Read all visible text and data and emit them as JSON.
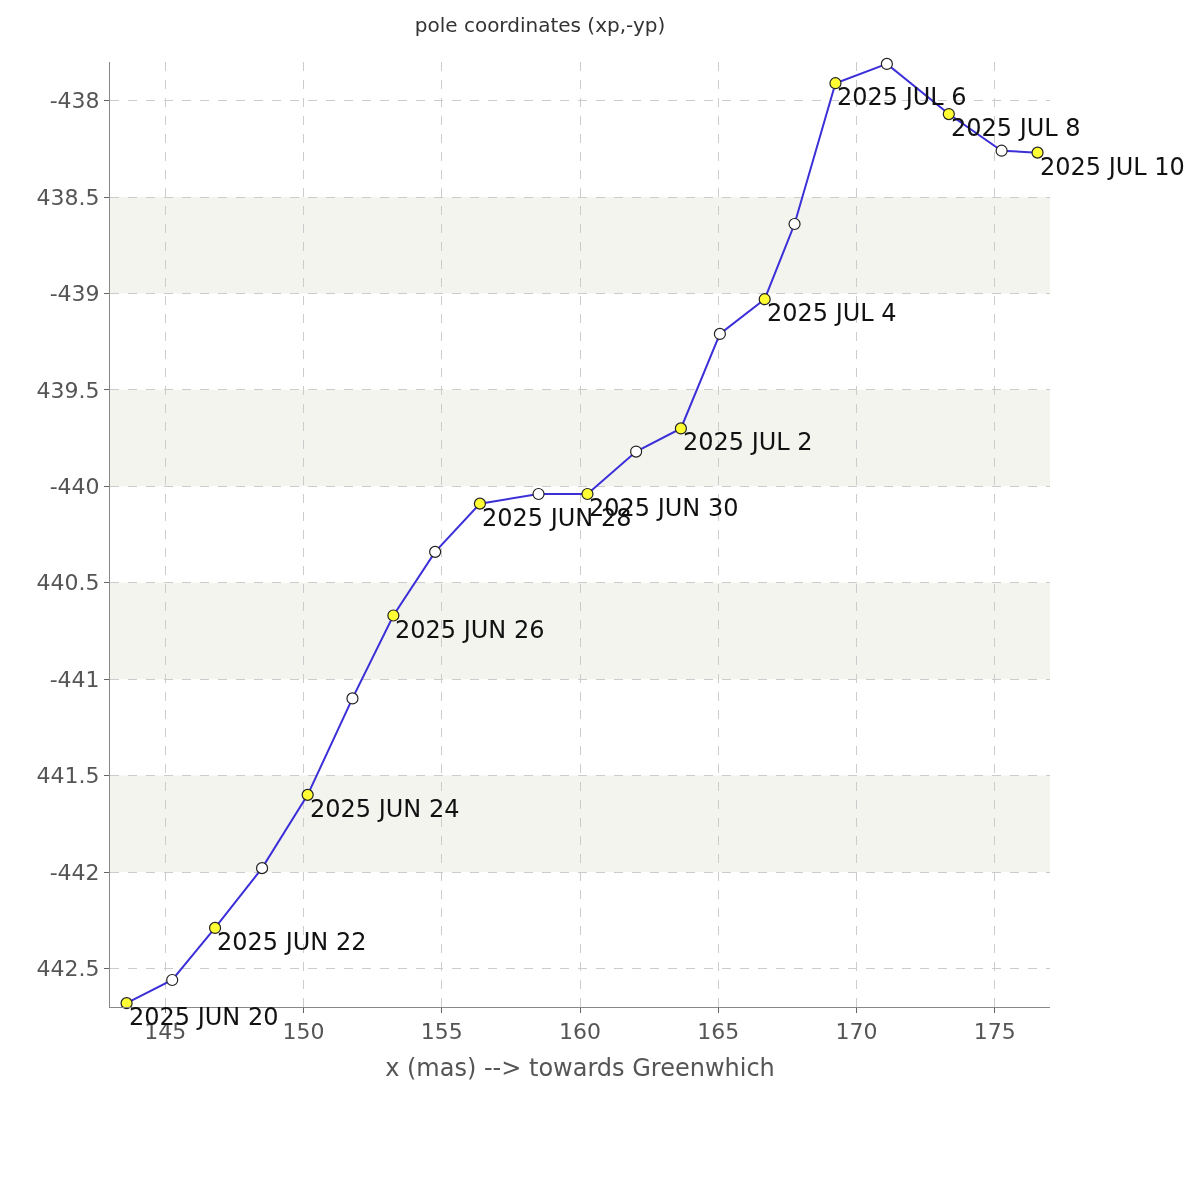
{
  "chart_data": {
    "type": "line",
    "title": "pole coordinates (xp,-yp)",
    "xlabel": "x (mas) --> towards Greenwhich",
    "x": [
      143.6,
      145.25,
      146.8,
      148.5,
      150.15,
      151.77,
      153.25,
      154.76,
      156.38,
      158.5,
      160.27,
      162.03,
      163.65,
      165.06,
      166.68,
      167.76,
      169.24,
      171.1,
      173.34,
      175.25,
      176.55
    ],
    "series": [
      {
        "color": "#3b2fd8",
        "values": [
          -442.68,
          -442.56,
          -442.29,
          -441.98,
          -441.6,
          -441.1,
          -440.67,
          -440.34,
          -440.09,
          -440.04,
          -440.04,
          -439.82,
          -439.7,
          -439.21,
          -439.03,
          -438.64,
          -437.91,
          -437.81,
          -438.07,
          -438.26,
          -438.27
        ],
        "colors": [
          "#ffff33",
          "#ffffff",
          "#ffff33",
          "#ffffff",
          "#ffff33",
          "#ffffff",
          "#ffff33",
          "#ffffff",
          "#ffff33",
          "#ffffff",
          "#ffff33",
          "#ffffff",
          "#ffff33",
          "#ffffff",
          "#ffff33",
          "#ffffff",
          "#ffff33",
          "#ffffff",
          "#ffff33",
          "#ffffff",
          "#ffff33"
        ]
      }
    ],
    "annotations": [
      {
        "text": "2025 JUN 20",
        "x": 143.6,
        "y": -442.68
      },
      {
        "text": "2025 JUN 22",
        "x": 146.8,
        "y": -442.29
      },
      {
        "text": "2025 JUN 24",
        "x": 150.15,
        "y": -441.6
      },
      {
        "text": "2025 JUN 26",
        "x": 153.25,
        "y": -440.67
      },
      {
        "text": "2025 JUN 28",
        "x": 156.38,
        "y": -440.09
      },
      {
        "text": "2025 JUN 30",
        "x": 160.27,
        "y": -440.04
      },
      {
        "text": "2025 JUL 2",
        "x": 163.65,
        "y": -439.7
      },
      {
        "text": "2025 JUL 4",
        "x": 166.68,
        "y": -439.03
      },
      {
        "text": "2025 JUL 6",
        "x": 169.24,
        "y": -437.91
      },
      {
        "text": "2025 JUL 8",
        "x": 173.34,
        "y": -438.07
      },
      {
        "text": "2025 JUL 10",
        "x": 176.55,
        "y": -438.27
      }
    ],
    "bands": [
      {
        "axis": "y",
        "from": -438.5,
        "to": -439,
        "color": "#f4f4ef"
      },
      {
        "axis": "y",
        "from": -439.5,
        "to": -440,
        "color": "#f4f4ef"
      },
      {
        "axis": "y",
        "from": -440.5,
        "to": -441,
        "color": "#f4f4ef"
      },
      {
        "axis": "y",
        "from": -441.5,
        "to": -442,
        "color": "#f4f4ef"
      }
    ],
    "xlim": [
      143,
      177
    ],
    "xticks": [
      145,
      150,
      155,
      160,
      165,
      170,
      175
    ],
    "ylim": [
      -442.7,
      -437.8
    ],
    "yticks": [
      -438,
      {
        "value": -438.5,
        "label": "438.5"
      },
      -439,
      {
        "value": -439.5,
        "label": "439.5"
      },
      -440,
      {
        "value": -440.5,
        "label": "440.5"
      },
      -441,
      {
        "value": -441.5,
        "label": "441.5"
      },
      -442,
      {
        "value": -442.5,
        "label": "442.5"
      }
    ],
    "grid": true,
    "marker": "circle",
    "line_style": "solid"
  }
}
